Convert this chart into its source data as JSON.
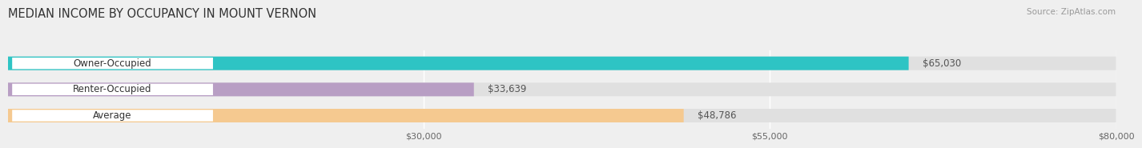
{
  "title": "MEDIAN INCOME BY OCCUPANCY IN MOUNT VERNON",
  "source": "Source: ZipAtlas.com",
  "categories": [
    "Owner-Occupied",
    "Renter-Occupied",
    "Average"
  ],
  "values": [
    65030,
    33639,
    48786
  ],
  "bar_colors": [
    "#2ec4c4",
    "#b89ec4",
    "#f5c990"
  ],
  "value_labels": [
    "$65,030",
    "$33,639",
    "$48,786"
  ],
  "xlim": [
    0,
    80000
  ],
  "xticks": [
    30000,
    55000,
    80000
  ],
  "xtick_labels": [
    "$30,000",
    "$55,000",
    "$80,000"
  ],
  "background_color": "#efefef",
  "bar_bg_color": "#e0e0e0",
  "title_fontsize": 10.5,
  "label_fontsize": 8.5,
  "tick_fontsize": 8,
  "source_fontsize": 7.5
}
